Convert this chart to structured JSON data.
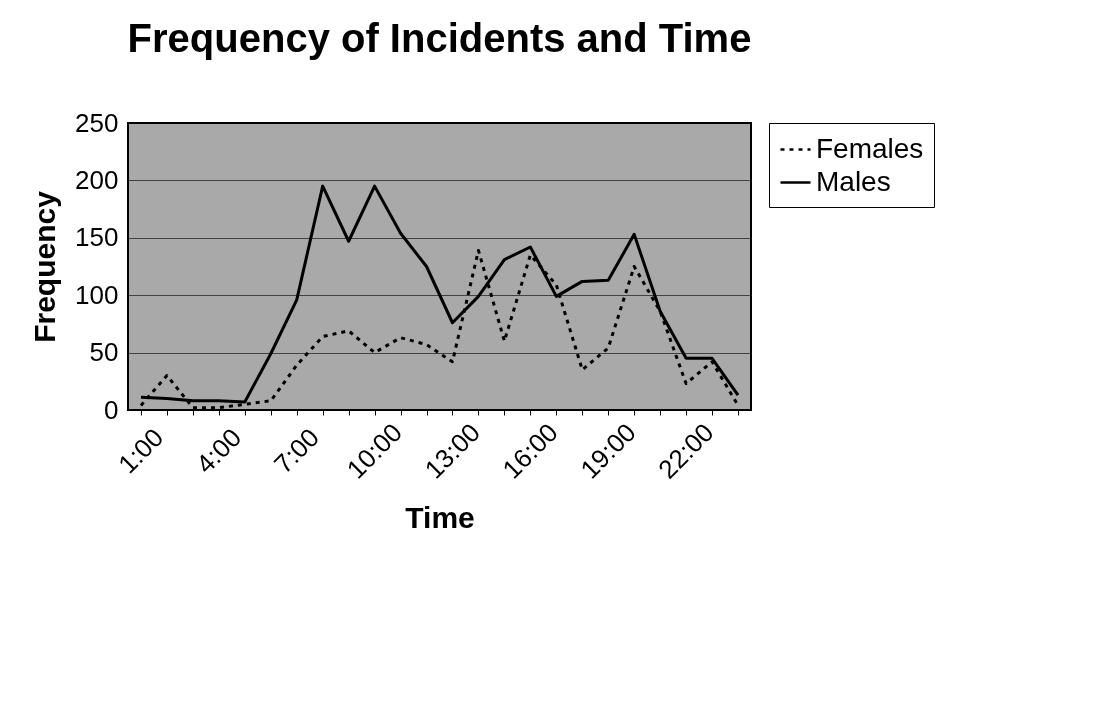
{
  "chart_data": {
    "type": "line",
    "title": "Frequency of Incidents and Time",
    "xlabel": "Time",
    "ylabel": "Frequency",
    "categories": [
      "1:00",
      null,
      null,
      "4:00",
      null,
      null,
      "7:00",
      null,
      null,
      "10:00",
      null,
      null,
      "13:00",
      null,
      null,
      "16:00",
      null,
      null,
      "19:00",
      null,
      null,
      "22:00",
      null,
      null
    ],
    "series": [
      {
        "name": "Females",
        "color": "#000000",
        "line_style": "dotted",
        "values": [
          4,
          30,
          2,
          2,
          5,
          8,
          39,
          64,
          69,
          50,
          63,
          57,
          42,
          139,
          60,
          135,
          109,
          35,
          54,
          125,
          86,
          23,
          42,
          4
        ]
      },
      {
        "name": "Males",
        "color": "#000000",
        "line_style": "solid",
        "values": [
          11,
          10,
          8,
          8,
          7,
          49,
          96,
          195,
          147,
          195,
          154,
          125,
          76,
          99,
          131,
          142,
          99,
          112,
          113,
          153,
          86,
          45,
          45,
          13
        ]
      }
    ],
    "ylim": [
      0,
      250
    ],
    "yticks": [
      0,
      50,
      100,
      150,
      200,
      250
    ],
    "grid": "y",
    "legend": "right",
    "marker": "none"
  }
}
